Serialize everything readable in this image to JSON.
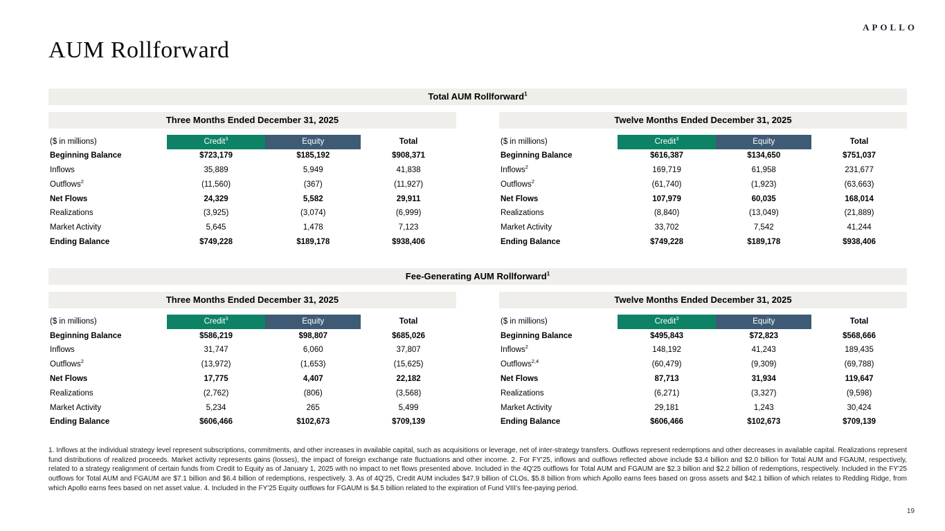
{
  "brand": {
    "logo": "APOLLO"
  },
  "page": {
    "title": "AUM Rollforward",
    "number": "19"
  },
  "colors": {
    "credit": "#0d8264",
    "equity": "#3e5a75",
    "bar_bg": "#efeeea"
  },
  "columns": {
    "units": "($ in millions)",
    "credit": {
      "label": "Credit",
      "sup": "3"
    },
    "equity": "Equity",
    "total": "Total"
  },
  "sections": [
    {
      "title": "Total AUM Rollforward",
      "title_sup": "1",
      "tables": [
        {
          "period": "Three Months Ended December 31, 2025",
          "rows": [
            {
              "label": "Beginning Balance",
              "bold": true,
              "values": [
                "$723,179",
                "$185,192",
                "$908,371"
              ]
            },
            {
              "label": "Inflows",
              "values": [
                "35,889",
                "5,949",
                "41,838"
              ]
            },
            {
              "label": "Outflows",
              "sup": "2",
              "values": [
                "(11,560)",
                "(367)",
                "(11,927)"
              ]
            },
            {
              "label": "Net Flows",
              "bold": true,
              "values": [
                "24,329",
                "5,582",
                "29,911"
              ]
            },
            {
              "label": "Realizations",
              "values": [
                "(3,925)",
                "(3,074)",
                "(6,999)"
              ]
            },
            {
              "label": "Market Activity",
              "values": [
                "5,645",
                "1,478",
                "7,123"
              ]
            },
            {
              "label": "Ending Balance",
              "bold": true,
              "values": [
                "$749,228",
                "$189,178",
                "$938,406"
              ]
            }
          ]
        },
        {
          "period": "Twelve Months Ended December 31, 2025",
          "rows": [
            {
              "label": "Beginning Balance",
              "bold": true,
              "values": [
                "$616,387",
                "$134,650",
                "$751,037"
              ]
            },
            {
              "label": "Inflows",
              "sup": "2",
              "values": [
                "169,719",
                "61,958",
                "231,677"
              ]
            },
            {
              "label": "Outflows",
              "sup": "2",
              "values": [
                "(61,740)",
                "(1,923)",
                "(63,663)"
              ]
            },
            {
              "label": "Net Flows",
              "bold": true,
              "values": [
                "107,979",
                "60,035",
                "168,014"
              ]
            },
            {
              "label": "Realizations",
              "values": [
                "(8,840)",
                "(13,049)",
                "(21,889)"
              ]
            },
            {
              "label": "Market Activity",
              "values": [
                "33,702",
                "7,542",
                "41,244"
              ]
            },
            {
              "label": "Ending Balance",
              "bold": true,
              "values": [
                "$749,228",
                "$189,178",
                "$938,406"
              ]
            }
          ]
        }
      ]
    },
    {
      "title": "Fee-Generating AUM Rollforward",
      "title_sup": "1",
      "tables": [
        {
          "period": "Three Months Ended December 31, 2025",
          "rows": [
            {
              "label": "Beginning Balance",
              "bold": true,
              "values": [
                "$586,219",
                "$98,807",
                "$685,026"
              ]
            },
            {
              "label": "Inflows",
              "values": [
                "31,747",
                "6,060",
                "37,807"
              ]
            },
            {
              "label": "Outflows",
              "sup": "2",
              "values": [
                "(13,972)",
                "(1,653)",
                "(15,625)"
              ]
            },
            {
              "label": "Net Flows",
              "bold": true,
              "values": [
                "17,775",
                "4,407",
                "22,182"
              ]
            },
            {
              "label": "Realizations",
              "values": [
                "(2,762)",
                "(806)",
                "(3,568)"
              ]
            },
            {
              "label": "Market Activity",
              "values": [
                "5,234",
                "265",
                "5,499"
              ]
            },
            {
              "label": "Ending Balance",
              "bold": true,
              "values": [
                "$606,466",
                "$102,673",
                "$709,139"
              ]
            }
          ]
        },
        {
          "period": "Twelve Months Ended December 31, 2025",
          "rows": [
            {
              "label": "Beginning Balance",
              "bold": true,
              "values": [
                "$495,843",
                "$72,823",
                "$568,666"
              ]
            },
            {
              "label": "Inflows",
              "sup": "2",
              "values": [
                "148,192",
                "41,243",
                "189,435"
              ]
            },
            {
              "label": "Outflows",
              "sup": "2,4",
              "values": [
                "(60,479)",
                "(9,309)",
                "(69,788)"
              ]
            },
            {
              "label": "Net Flows",
              "bold": true,
              "values": [
                "87,713",
                "31,934",
                "119,647"
              ]
            },
            {
              "label": "Realizations",
              "values": [
                "(6,271)",
                "(3,327)",
                "(9,598)"
              ]
            },
            {
              "label": "Market Activity",
              "values": [
                "29,181",
                "1,243",
                "30,424"
              ]
            },
            {
              "label": "Ending Balance",
              "bold": true,
              "values": [
                "$606,466",
                "$102,673",
                "$709,139"
              ]
            }
          ]
        }
      ]
    }
  ],
  "footnotes": "1. Inflows at the individual strategy level represent subscriptions, commitments, and other increases in available capital, such as acquisitions or leverage, net of inter-strategy transfers. Outflows represent redemptions and other decreases in available capital. Realizations represent fund distributions of realized proceeds. Market activity represents gains (losses), the impact of foreign exchange rate fluctuations and other income. 2. For FY'25, inflows and outflows reflected above include $3.4 billion and $2.0 billion for Total AUM and FGAUM, respectively, related to a strategy realignment of certain funds from Credit to Equity as of January 1, 2025 with no impact to net flows presented above. Included in the 4Q'25 outflows for Total AUM and FGAUM are $2.3 billion and $2.2 billion of redemptions, respectively. Included in the FY'25 outflows for Total AUM and FGAUM are $7.1 billion and $6.4 billion of redemptions, respectively. 3. As of 4Q'25, Credit AUM includes $47.9 billion of CLOs, $5.8 billion from which Apollo earns fees based on gross assets and $42.1 billion of which relates to Redding Ridge, from which Apollo earns fees based on net asset value. 4. Included in the FY'25 Equity outflows for FGAUM is $4.5 billion related to the expiration of Fund VIII's fee-paying period."
}
